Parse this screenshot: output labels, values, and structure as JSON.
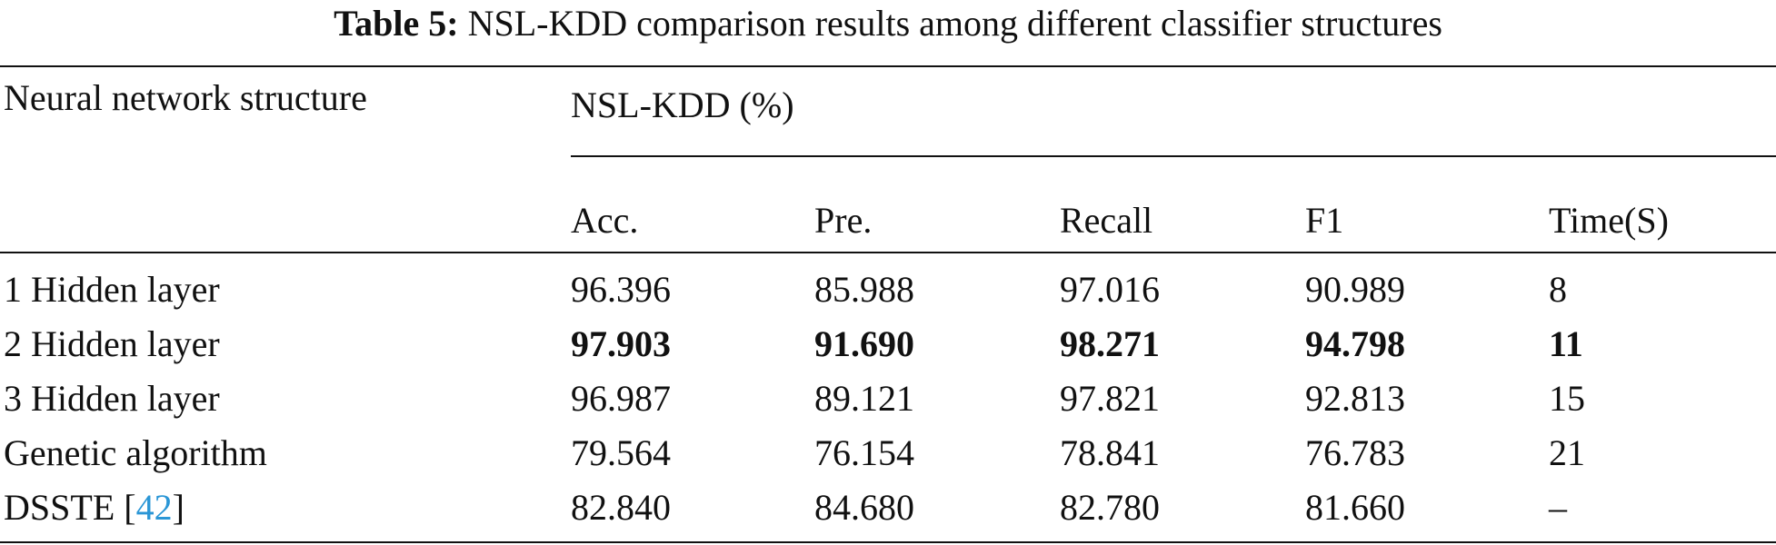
{
  "caption": {
    "label": "Table 5:",
    "text": "NSL-KDD comparison results among different classifier structures"
  },
  "table": {
    "row_header": "Neural network structure",
    "group_header": "NSL-KDD (%)",
    "columns": [
      "Acc.",
      "Pre.",
      "Recall",
      "F1",
      "Time(S)"
    ],
    "rows": [
      {
        "name": "1 Hidden layer",
        "ref": "",
        "values": [
          "96.396",
          "85.988",
          "97.016",
          "90.989",
          "8"
        ],
        "bold": false
      },
      {
        "name": "2 Hidden layer",
        "ref": "",
        "values": [
          "97.903",
          "91.690",
          "98.271",
          "94.798",
          "11"
        ],
        "bold": true
      },
      {
        "name": "3 Hidden layer",
        "ref": "",
        "values": [
          "96.987",
          "89.121",
          "97.821",
          "92.813",
          "15"
        ],
        "bold": false
      },
      {
        "name": "Genetic algorithm",
        "ref": "",
        "values": [
          "79.564",
          "76.154",
          "78.841",
          "76.783",
          "21"
        ],
        "bold": false
      },
      {
        "name": "DSSTE [",
        "ref": "42",
        "ref_close": "]",
        "values": [
          "82.840",
          "84.680",
          "82.780",
          "81.660",
          "–"
        ],
        "bold": false
      }
    ]
  },
  "colors": {
    "text": "#111111",
    "reference_link": "#2a96d6"
  }
}
